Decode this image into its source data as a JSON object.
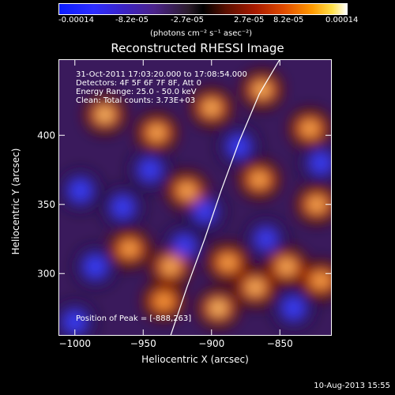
{
  "colorbar": {
    "ticks": [
      "-0.00014",
      "-8.2e-05",
      "-2.7e-05",
      "2.7e-05",
      "8.2e-05",
      "0.00014"
    ],
    "units_label": "(photons cm⁻² s⁻¹ asec⁻²)",
    "colors": {
      "low": "#0b1cff",
      "mid": "#000000",
      "high": "#ffffff"
    }
  },
  "chart_data": {
    "type": "heatmap",
    "title": "Reconstructed RHESSI Image",
    "xlabel": "Heliocentric X (arcsec)",
    "ylabel": "Heliocentric Y (arcsec)",
    "xlim": [
      -1012,
      -812
    ],
    "ylim": [
      255,
      455
    ],
    "x_ticks": [
      -1000,
      -950,
      -900,
      -850
    ],
    "y_ticks": [
      300,
      350,
      400
    ],
    "x_tick_labels": [
      "−1000",
      "−950",
      "−900",
      "−850"
    ],
    "y_tick_labels": [
      "300",
      "350",
      "400"
    ],
    "colormap_range": [
      -0.00014,
      0.00014
    ],
    "annotations": [
      "31-Oct-2011 17:03:20.000 to 17:08:54.000",
      "Detectors: 4F 5F 6F 7F 8F, Att 0",
      "Energy Range: 25.0 - 50.0 keV",
      "Clean: Total counts: 3.73E+03"
    ],
    "peak_label": "Position of Peak = [-888,263]",
    "peak": {
      "x": -888,
      "y": 263
    },
    "limb_arc": "solar limb (white arc)",
    "hot_spots": [
      {
        "x": -978,
        "y": 415,
        "v": 1.0
      },
      {
        "x": -940,
        "y": 402,
        "v": 0.8
      },
      {
        "x": -900,
        "y": 420,
        "v": 0.85
      },
      {
        "x": -863,
        "y": 433,
        "v": 0.9
      },
      {
        "x": -828,
        "y": 405,
        "v": 0.75
      },
      {
        "x": -918,
        "y": 360,
        "v": 0.8
      },
      {
        "x": -865,
        "y": 368,
        "v": 0.75
      },
      {
        "x": -823,
        "y": 350,
        "v": 0.8
      },
      {
        "x": -960,
        "y": 318,
        "v": 0.7
      },
      {
        "x": -930,
        "y": 305,
        "v": 0.85
      },
      {
        "x": -888,
        "y": 308,
        "v": 0.7
      },
      {
        "x": -845,
        "y": 305,
        "v": 0.85
      },
      {
        "x": -820,
        "y": 295,
        "v": 0.7
      },
      {
        "x": -895,
        "y": 275,
        "v": 1.0
      },
      {
        "x": -868,
        "y": 290,
        "v": 0.9
      },
      {
        "x": -935,
        "y": 280,
        "v": 0.6
      }
    ],
    "cool_spots": [
      {
        "x": -996,
        "y": 360,
        "v": -0.9
      },
      {
        "x": -965,
        "y": 348,
        "v": -0.8
      },
      {
        "x": -985,
        "y": 305,
        "v": -0.95
      },
      {
        "x": -920,
        "y": 320,
        "v": -0.7
      },
      {
        "x": -945,
        "y": 375,
        "v": -0.75
      },
      {
        "x": -880,
        "y": 392,
        "v": -0.8
      },
      {
        "x": -840,
        "y": 275,
        "v": -0.85
      },
      {
        "x": -905,
        "y": 345,
        "v": -0.7
      },
      {
        "x": -1000,
        "y": 265,
        "v": -0.8
      },
      {
        "x": -860,
        "y": 325,
        "v": -0.6
      },
      {
        "x": -820,
        "y": 380,
        "v": -0.75
      }
    ]
  },
  "footer": {
    "date_stamp": "10-Aug-2013 15:55"
  }
}
